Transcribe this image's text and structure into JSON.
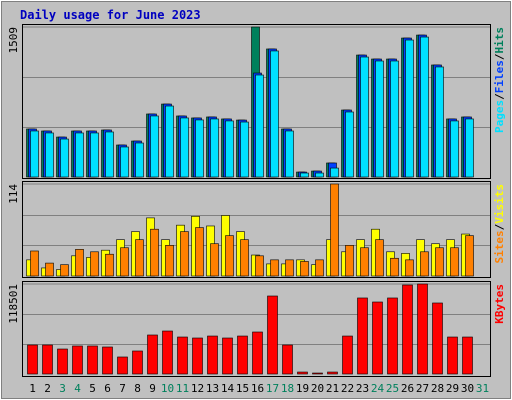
{
  "title": "Daily usage for June 2023",
  "legend_separator": "/",
  "chart_data": [
    {
      "type": "bar",
      "series": [
        {
          "name": "Hits",
          "color": "#00805c",
          "values": [
            483,
            463,
            402,
            463,
            463,
            473,
            322,
            362,
            634,
            734,
            614,
            594,
            604,
            584,
            573,
            1509,
            1288,
            483,
            50,
            60,
            141,
            674,
            1227,
            1187,
            1187,
            1398,
            1428,
            1127,
            584,
            604,
            0
          ]
        },
        {
          "name": "Files",
          "color": "#0040ff",
          "values": [
            483,
            463,
            402,
            463,
            463,
            473,
            322,
            362,
            634,
            734,
            614,
            594,
            604,
            584,
            573,
            1046,
            1288,
            483,
            50,
            60,
            141,
            674,
            1227,
            1187,
            1187,
            1398,
            1428,
            1127,
            584,
            604,
            0
          ]
        },
        {
          "name": "Pages",
          "color": "#00e0ff",
          "values": [
            463,
            443,
            382,
            443,
            443,
            453,
            302,
            342,
            614,
            714,
            594,
            574,
            584,
            564,
            553,
            1026,
            1268,
            463,
            40,
            40,
            90,
            654,
            1207,
            1167,
            1167,
            1378,
            1408,
            1107,
            564,
            584,
            0
          ]
        }
      ],
      "ylim": [
        0,
        1509
      ],
      "yticks": [
        1509
      ],
      "grid_lines": [
        503,
        1006
      ]
    },
    {
      "type": "bar",
      "series": [
        {
          "name": "Visits",
          "color": "#ffff00",
          "values": [
            20,
            10,
            8,
            25,
            23,
            32,
            45,
            55,
            72,
            45,
            63,
            74,
            62,
            75,
            55,
            26,
            15,
            15,
            20,
            14,
            45,
            30,
            45,
            58,
            30,
            28,
            45,
            40,
            45,
            52,
            0
          ]
        },
        {
          "name": "Sites",
          "color": "#ff8000",
          "values": [
            31,
            16,
            14,
            33,
            30,
            27,
            35,
            45,
            58,
            38,
            55,
            60,
            40,
            50,
            45,
            25,
            20,
            20,
            18,
            20,
            114,
            38,
            35,
            45,
            22,
            20,
            30,
            35,
            35,
            50,
            0
          ]
        }
      ],
      "ylim": [
        0,
        114
      ],
      "yticks": [
        114
      ],
      "grid_lines": [
        38,
        76
      ]
    },
    {
      "type": "bar",
      "series": [
        {
          "name": "KBytes",
          "color": "#ff0000",
          "values": [
            38190,
            38190,
            32900,
            36900,
            36900,
            35560,
            22400,
            30300,
            51360,
            56600,
            48700,
            47400,
            50000,
            47400,
            50000,
            55300,
            102700,
            38190,
            2600,
            1300,
            2600,
            50000,
            100100,
            94800,
            100100,
            117200,
            118501,
            93500,
            48700,
            48700,
            0
          ]
        }
      ],
      "ylim": [
        0,
        118501
      ],
      "yticks": [
        118501
      ],
      "grid_lines": [
        39500,
        79000
      ],
      "categories": [
        "1",
        "2",
        "3",
        "4",
        "5",
        "6",
        "7",
        "8",
        "9",
        "10",
        "11",
        "12",
        "13",
        "14",
        "15",
        "16",
        "17",
        "18",
        "19",
        "20",
        "21",
        "22",
        "23",
        "24",
        "25",
        "26",
        "27",
        "28",
        "29",
        "30",
        "31"
      ],
      "category_colors": [
        "#000000",
        "#000000",
        "#00805c",
        "#00805c",
        "#000000",
        "#000000",
        "#000000",
        "#000000",
        "#000000",
        "#00805c",
        "#00805c",
        "#000000",
        "#000000",
        "#000000",
        "#000000",
        "#000000",
        "#00805c",
        "#00805c",
        "#000000",
        "#000000",
        "#000000",
        "#000000",
        "#000000",
        "#00805c",
        "#00805c",
        "#000000",
        "#000000",
        "#000000",
        "#000000",
        "#000000",
        "#00805c"
      ]
    }
  ]
}
